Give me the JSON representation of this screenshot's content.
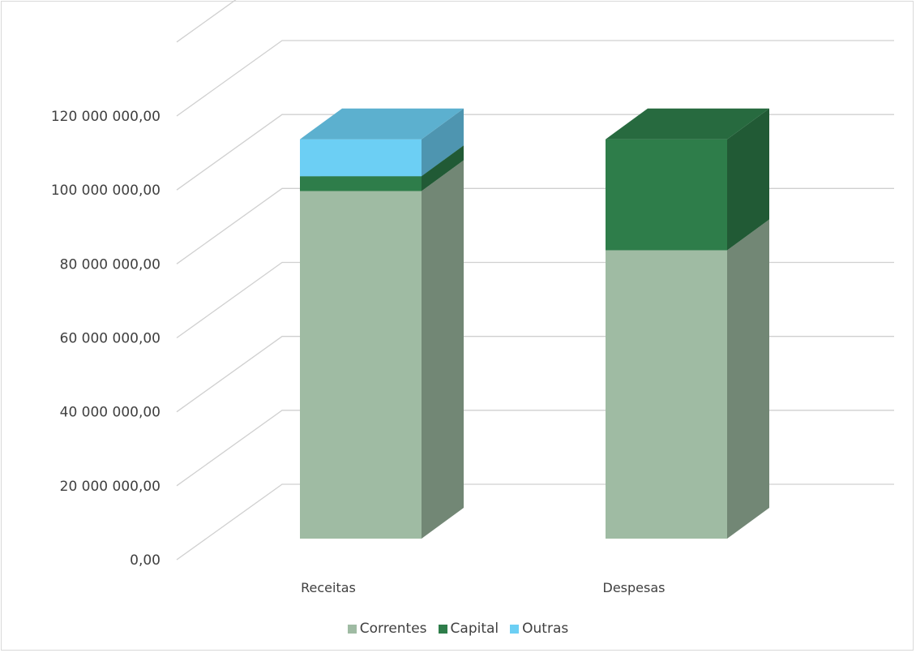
{
  "chart_data": {
    "type": "bar",
    "stacked": true,
    "style": "3d",
    "categories": [
      "Receitas",
      "Despesas"
    ],
    "series": [
      {
        "name": "Correntes",
        "values": [
          94000000,
          78000000
        ],
        "color": "#9fbba3"
      },
      {
        "name": "Capital",
        "values": [
          4000000,
          30000000
        ],
        "color": "#2e7d4a"
      },
      {
        "name": "Outras",
        "values": [
          10000000,
          0
        ],
        "color": "#6ccff4"
      }
    ],
    "ylim": [
      0,
      120000000
    ],
    "yticks": [
      "0,00",
      "20 000 000,00",
      "40 000 000,00",
      "60 000 000,00",
      "80 000 000,00",
      "100 000 000,00",
      "120 000 000,00"
    ],
    "grid": true,
    "legend": "bottom",
    "title": "",
    "xlabel": "",
    "ylabel": ""
  }
}
